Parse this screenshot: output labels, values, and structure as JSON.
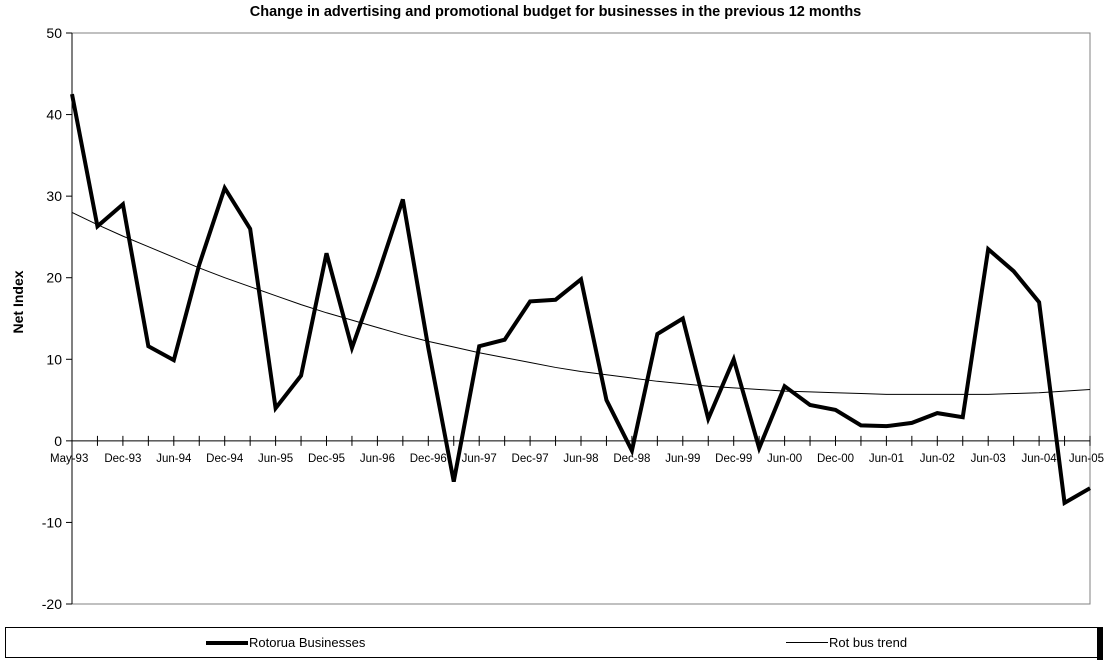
{
  "chart_data": {
    "type": "line",
    "title": "Change in advertising and promotional budget for businesses in the previous 12 months",
    "ylabel": "Net Index",
    "xlabel": "",
    "ylim": [
      -20,
      50
    ],
    "yticks": [
      -20,
      -10,
      0,
      10,
      20,
      30,
      40,
      50
    ],
    "x_tick_labels": [
      "May-93",
      "Dec-93",
      "Jun-94",
      "Dec-94",
      "Jun-95",
      "Dec-95",
      "Jun-96",
      "Dec-96",
      "Jun-97",
      "Dec-97",
      "Jun-98",
      "Dec-98",
      "Jun-99",
      "Dec-99",
      "Jun-00",
      "Dec-00",
      "Jun-01",
      "Jun-02",
      "Jun-03",
      "Jun-04",
      "Jun-05"
    ],
    "legend_position": "bottom",
    "series": [
      {
        "name": "Rotorua Businesses",
        "style": "thick",
        "color": "#000000",
        "values": [
          42.5,
          26.3,
          29.0,
          11.6,
          9.9,
          21.6,
          31.0,
          26.0,
          4.0,
          8.0,
          23.0,
          11.4,
          20.2,
          29.6,
          11.4,
          -5.0,
          11.6,
          12.4,
          17.1,
          17.3,
          19.8,
          5.0,
          -1.2,
          13.1,
          15.0,
          2.7,
          10.0,
          -0.9,
          6.7,
          4.4,
          3.8,
          1.9,
          1.8,
          2.2,
          3.4,
          2.9,
          23.5,
          20.8,
          17.0,
          -7.6,
          -5.8
        ]
      },
      {
        "name": "Rot bus trend",
        "style": "thin",
        "color": "#000000",
        "values": [
          28.0,
          26.5,
          25.1,
          23.8,
          22.5,
          21.2,
          20.0,
          18.9,
          17.8,
          16.7,
          15.7,
          14.8,
          13.9,
          13.0,
          12.2,
          11.5,
          10.8,
          10.2,
          9.6,
          9.0,
          8.5,
          8.1,
          7.7,
          7.3,
          7.0,
          6.7,
          6.5,
          6.3,
          6.1,
          6.0,
          5.9,
          5.8,
          5.7,
          5.7,
          5.7,
          5.7,
          5.7,
          5.8,
          5.9,
          6.1,
          6.3
        ]
      }
    ]
  }
}
